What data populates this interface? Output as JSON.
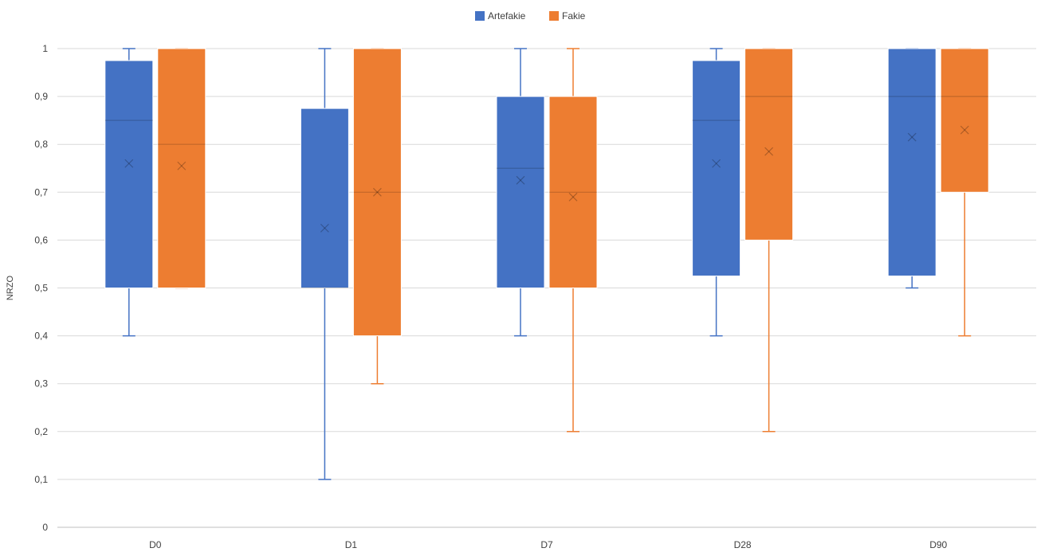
{
  "chart_data": {
    "type": "boxplot",
    "title": "",
    "xlabel": "",
    "ylabel": "NRZO",
    "ylim": [
      0,
      1
    ],
    "yticks": [
      "0",
      "0,1",
      "0,2",
      "0,3",
      "0,4",
      "0,5",
      "0,6",
      "0,7",
      "0,8",
      "0,9",
      "1"
    ],
    "grid": true,
    "legend_position": "top",
    "categories": [
      "D0",
      "D1",
      "D7",
      "D28",
      "D90"
    ],
    "series": [
      {
        "name": "Artefakie",
        "color": "#4472C4",
        "boxes": [
          {
            "min": 0.4,
            "q1": 0.5,
            "median": 0.85,
            "q3": 0.975,
            "max": 1.0,
            "mean": 0.76
          },
          {
            "min": 0.1,
            "q1": 0.5,
            "median": 0.5,
            "q3": 0.875,
            "max": 1.0,
            "mean": 0.625
          },
          {
            "min": 0.4,
            "q1": 0.5,
            "median": 0.75,
            "q3": 0.9,
            "max": 1.0,
            "mean": 0.725
          },
          {
            "min": 0.4,
            "q1": 0.525,
            "median": 0.85,
            "q3": 0.975,
            "max": 1.0,
            "mean": 0.76
          },
          {
            "min": 0.5,
            "q1": 0.525,
            "median": 0.9,
            "q3": 1.0,
            "max": 1.0,
            "mean": 0.815
          }
        ]
      },
      {
        "name": "Fakie",
        "color": "#ED7D31",
        "boxes": [
          {
            "min": 0.5,
            "q1": 0.5,
            "median": 0.8,
            "q3": 1.0,
            "max": 1.0,
            "mean": 0.755
          },
          {
            "min": 0.3,
            "q1": 0.4,
            "median": 0.7,
            "q3": 1.0,
            "max": 1.0,
            "mean": 0.7
          },
          {
            "min": 0.2,
            "q1": 0.5,
            "median": 0.7,
            "q3": 0.9,
            "max": 1.0,
            "mean": 0.69
          },
          {
            "min": 0.2,
            "q1": 0.6,
            "median": 0.9,
            "q3": 1.0,
            "max": 1.0,
            "mean": 0.785
          },
          {
            "min": 0.4,
            "q1": 0.7,
            "median": 0.9,
            "q3": 1.0,
            "max": 1.0,
            "mean": 0.83
          }
        ]
      }
    ]
  }
}
